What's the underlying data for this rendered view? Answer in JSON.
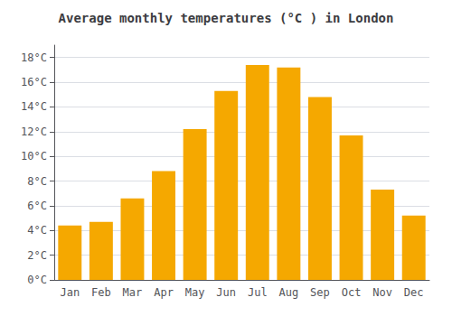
{
  "chart_data": {
    "type": "bar",
    "title": "Average monthly temperatures (°C ) in London",
    "categories": [
      "Jan",
      "Feb",
      "Mar",
      "Apr",
      "May",
      "Jun",
      "Jul",
      "Aug",
      "Sep",
      "Oct",
      "Nov",
      "Dec"
    ],
    "values": [
      4.4,
      4.7,
      6.6,
      8.8,
      12.2,
      15.3,
      17.4,
      17.2,
      14.8,
      11.7,
      7.3,
      5.2
    ],
    "color": "#F5A800",
    "ylim": [
      0,
      19
    ],
    "yticks": [
      {
        "value": 0,
        "label": "0°C"
      },
      {
        "value": 2,
        "label": "2°C"
      },
      {
        "value": 4,
        "label": "4°C"
      },
      {
        "value": 6,
        "label": "6°C"
      },
      {
        "value": 8,
        "label": "8°C"
      },
      {
        "value": 10,
        "label": "10°C"
      },
      {
        "value": 12,
        "label": "12°C"
      },
      {
        "value": 14,
        "label": "14°C"
      },
      {
        "value": 16,
        "label": "16°C"
      },
      {
        "value": 18,
        "label": "18°C"
      }
    ],
    "grid": true
  }
}
